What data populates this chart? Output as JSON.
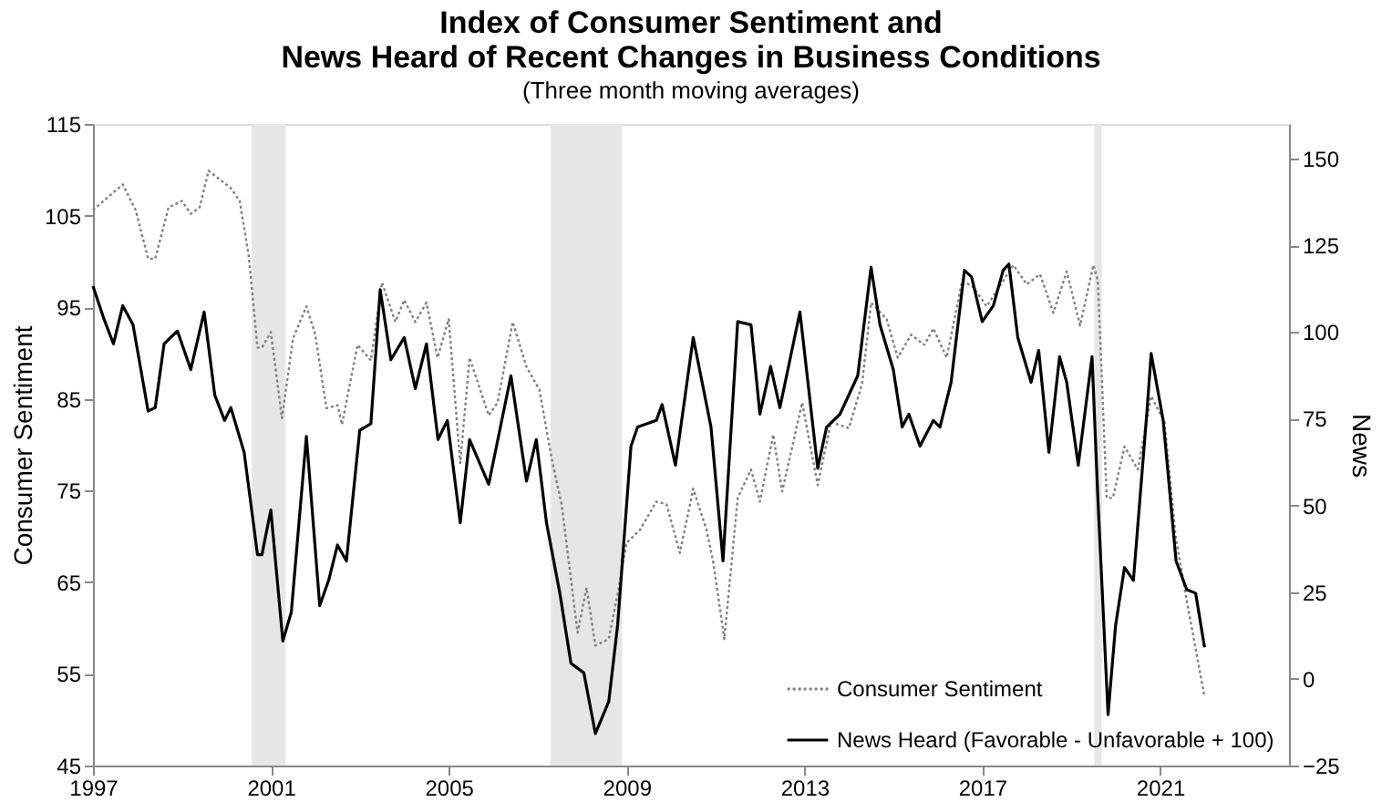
{
  "chart_data": {
    "type": "line",
    "title": [
      "Index of Consumer Sentiment and",
      "News Heard of Recent Changes in Business Conditions"
    ],
    "subtitle": "(Three month moving averages)",
    "ylabel": "Consumer Sentiment",
    "y2label": "News",
    "xlim": [
      1997,
      2023.9
    ],
    "xticks": [
      1997,
      2001,
      2005,
      2009,
      2013,
      2017,
      2021
    ],
    "ylim": [
      45,
      115
    ],
    "yticks": [
      45,
      55,
      65,
      75,
      85,
      95,
      105,
      115
    ],
    "y2lim": [
      -25,
      160
    ],
    "y2ticks": [
      -25,
      0,
      25,
      50,
      75,
      100,
      125,
      150
    ],
    "grid": false,
    "legend": "bottom right",
    "bands": [
      {
        "axis": "x",
        "from": 2000.57,
        "to": 2001.33,
        "color": "#e6e6e6"
      },
      {
        "axis": "x",
        "from": 2007.29,
        "to": 2008.9,
        "color": "#e6e6e6"
      },
      {
        "axis": "x",
        "from": 2019.52,
        "to": 2019.69,
        "color": "#e6e6e6"
      }
    ],
    "series": [
      {
        "name": "Consumer Sentiment",
        "color": "#7f7f7f",
        "line_style": "dotted",
        "axis": "y",
        "x": [
          1997.0,
          1997.67,
          1997.96,
          1998.24,
          1998.4,
          1998.7,
          1999.0,
          1999.2,
          1999.4,
          1999.6,
          2000.1,
          2000.3,
          2000.5,
          2000.7,
          2000.8,
          2001.0,
          2001.25,
          2001.5,
          2001.8,
          2002.0,
          2002.25,
          2002.5,
          2002.6,
          2002.95,
          2003.25,
          2003.5,
          2003.8,
          2004.0,
          2004.25,
          2004.5,
          2004.75,
          2005.0,
          2005.26,
          2005.47,
          2005.9,
          2006.1,
          2006.44,
          2006.75,
          2007.04,
          2007.32,
          2007.54,
          2007.9,
          2008.1,
          2008.3,
          2008.6,
          2008.8,
          2009.0,
          2009.3,
          2009.67,
          2009.9,
          2010.2,
          2010.5,
          2010.8,
          2010.95,
          2011.2,
          2011.5,
          2011.8,
          2012.0,
          2012.3,
          2012.5,
          2012.95,
          2013.3,
          2013.6,
          2014.0,
          2014.3,
          2014.5,
          2014.85,
          2015.1,
          2015.4,
          2015.7,
          2015.9,
          2016.2,
          2016.55,
          2016.8,
          2017.1,
          2017.7,
          2018.0,
          2018.3,
          2018.6,
          2018.9,
          2019.2,
          2019.5,
          2019.6,
          2019.8,
          2019.94,
          2020.2,
          2020.5,
          2020.8,
          2021.1,
          2021.35,
          2021.6,
          2022.0
        ],
        "values": [
          105.6,
          108.4,
          105.6,
          100.3,
          100.3,
          105.9,
          106.6,
          105.2,
          105.9,
          109.9,
          108.0,
          106.6,
          100.7,
          90.6,
          90.6,
          92.3,
          82.9,
          91.6,
          95.1,
          92.0,
          84.0,
          84.3,
          82.2,
          90.9,
          89.2,
          97.7,
          93.4,
          95.8,
          93.4,
          95.5,
          89.5,
          93.7,
          78.0,
          89.5,
          83.2,
          84.6,
          93.4,
          88.5,
          86.0,
          78.4,
          73.5,
          59.5,
          64.4,
          58.1,
          58.8,
          63.7,
          69.3,
          70.7,
          73.8,
          73.5,
          68.2,
          75.2,
          70.7,
          67.2,
          58.8,
          74.2,
          77.3,
          73.8,
          81.1,
          74.9,
          84.6,
          75.6,
          82.5,
          81.8,
          86.7,
          95.5,
          93.7,
          89.5,
          92.0,
          90.9,
          92.7,
          89.5,
          97.9,
          97.2,
          95.1,
          99.6,
          97.5,
          98.6,
          94.4,
          98.9,
          93.0,
          99.6,
          97.9,
          74.2,
          74.2,
          79.8,
          77.3,
          85.3,
          82.5,
          70.0,
          63.0,
          52.5
        ]
      },
      {
        "name": "News Heard (Favorable - Unfavorable + 100)",
        "color": "#000000",
        "line_style": "solid",
        "axis": "y2",
        "x": [
          1997.0,
          1997.24,
          1997.46,
          1997.67,
          1997.9,
          1998.24,
          1998.4,
          1998.6,
          1998.9,
          1999.2,
          1999.5,
          1999.74,
          1999.96,
          2000.1,
          2000.4,
          2000.7,
          2000.8,
          2001.0,
          2001.27,
          2001.46,
          2001.8,
          2002.1,
          2002.3,
          2002.5,
          2002.7,
          2003.0,
          2003.25,
          2003.46,
          2003.7,
          2004.0,
          2004.25,
          2004.5,
          2004.76,
          2004.97,
          2005.26,
          2005.47,
          2005.9,
          2006.4,
          2006.75,
          2006.97,
          2007.2,
          2007.5,
          2007.75,
          2008.04,
          2008.3,
          2008.6,
          2008.8,
          2009.1,
          2009.25,
          2009.67,
          2009.8,
          2010.1,
          2010.5,
          2010.9,
          2011.17,
          2011.5,
          2011.8,
          2012.0,
          2012.24,
          2012.45,
          2012.9,
          2013.3,
          2013.5,
          2013.8,
          2014.2,
          2014.5,
          2014.7,
          2015.0,
          2015.2,
          2015.35,
          2015.6,
          2015.9,
          2016.05,
          2016.3,
          2016.6,
          2016.76,
          2017.0,
          2017.25,
          2017.47,
          2017.6,
          2017.8,
          2018.1,
          2018.27,
          2018.5,
          2018.74,
          2018.9,
          2019.16,
          2019.47,
          2019.6,
          2019.83,
          2020.0,
          2020.2,
          2020.4,
          2020.7,
          2020.8,
          2021.07,
          2021.36,
          2021.6,
          2021.8,
          2022.0
        ],
        "values": [
          113.2,
          104.0,
          96.6,
          107.6,
          102.1,
          77.2,
          78.2,
          96.6,
          100.3,
          89.2,
          105.8,
          81.8,
          74.5,
          78.2,
          65.3,
          35.8,
          35.8,
          48.7,
          10.9,
          19.2,
          69.9,
          21.1,
          28.4,
          38.6,
          34.0,
          71.7,
          73.6,
          112.2,
          92.0,
          98.4,
          83.7,
          96.6,
          69.0,
          74.5,
          45.0,
          69.0,
          56.1,
          87.4,
          57.0,
          69.0,
          45.0,
          24.7,
          4.5,
          1.7,
          -15.8,
          -6.6,
          15.5,
          67.1,
          72.6,
          74.5,
          79.1,
          61.6,
          98.4,
          72.6,
          34.0,
          103.0,
          102.1,
          76.3,
          90.1,
          78.2,
          105.8,
          60.7,
          72.6,
          76.3,
          87.4,
          118.7,
          102.1,
          89.2,
          72.6,
          76.3,
          67.1,
          74.5,
          72.6,
          85.5,
          117.8,
          115.9,
          103.0,
          107.6,
          117.8,
          119.6,
          98.4,
          85.5,
          94.7,
          65.3,
          92.9,
          85.5,
          61.6,
          92.9,
          52.4,
          -10.3,
          15.5,
          32.1,
          28.4,
          76.3,
          93.8,
          74.5,
          34.0,
          25.7,
          24.7,
          9.1
        ]
      }
    ]
  }
}
